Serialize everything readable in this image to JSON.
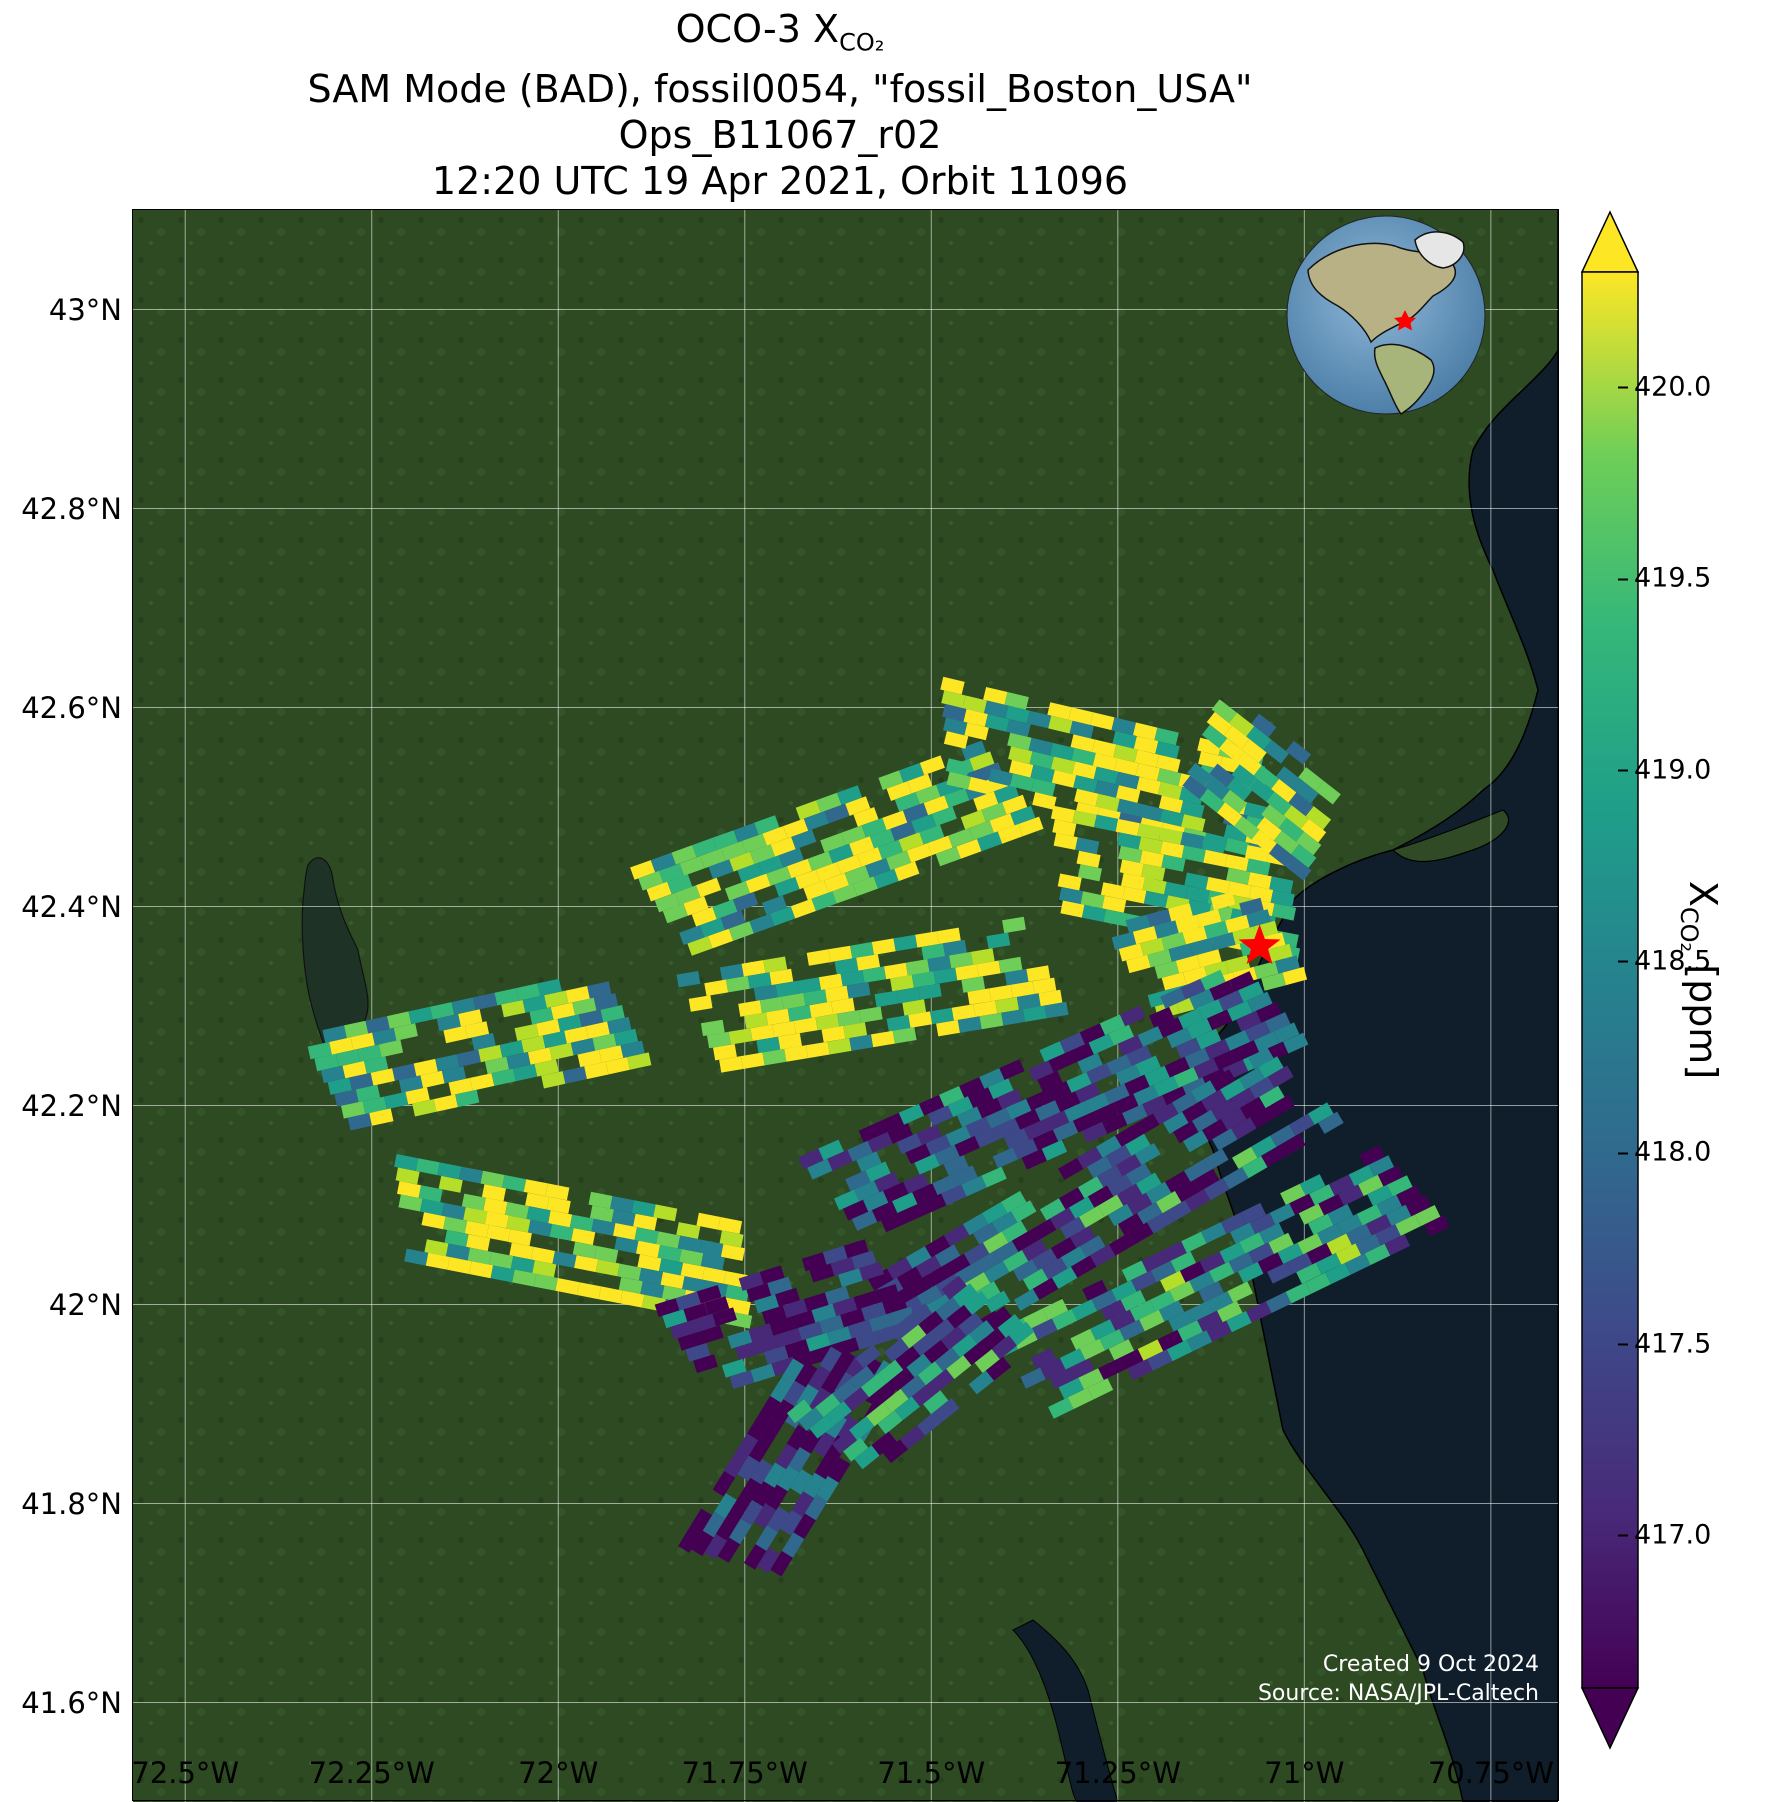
{
  "title": {
    "line1_main": "OCO-3 X",
    "line1_sub": "CO₂",
    "line2": "SAM Mode (BAD), fossil0054, \"fossil_Boston_USA\"",
    "line3": "Ops_B11067_r02",
    "line4": "12:20 UTC 19 Apr 2021, Orbit 11096"
  },
  "map": {
    "lon_range": [
      -72.57,
      -70.66
    ],
    "lat_range": [
      41.5,
      43.1
    ],
    "lat_ticks": [
      {
        "value": 43.0,
        "label": "43°N"
      },
      {
        "value": 42.8,
        "label": "42.8°N"
      },
      {
        "value": 42.6,
        "label": "42.6°N"
      },
      {
        "value": 42.4,
        "label": "42.4°N"
      },
      {
        "value": 42.2,
        "label": "42.2°N"
      },
      {
        "value": 42.0,
        "label": "42°N"
      },
      {
        "value": 41.8,
        "label": "41.8°N"
      },
      {
        "value": 41.6,
        "label": "41.6°N"
      }
    ],
    "lon_ticks": [
      {
        "value": -72.5,
        "label": "72.5°W"
      },
      {
        "value": -72.25,
        "label": "72.25°W"
      },
      {
        "value": -72.0,
        "label": "72°W"
      },
      {
        "value": -71.75,
        "label": "71.75°W"
      },
      {
        "value": -71.5,
        "label": "71.5°W"
      },
      {
        "value": -71.25,
        "label": "71.25°W"
      },
      {
        "value": -71.0,
        "label": "71°W"
      },
      {
        "value": -70.75,
        "label": "70.75°W"
      }
    ],
    "target": {
      "lon": -71.06,
      "lat": 42.36,
      "marker": "red-star"
    },
    "credit_line1": "Created 9 Oct 2024",
    "credit_line2": "Source: NASA/JPL-Caltech",
    "inset_globe": {
      "marker": "red-star",
      "region": "Western hemisphere, centered on North America"
    }
  },
  "colorbar": {
    "colormap": "viridis",
    "min": 416.6,
    "max": 420.3,
    "extend": "both",
    "ticks": [
      {
        "value": 417.0,
        "label": "417.0"
      },
      {
        "value": 417.5,
        "label": "417.5"
      },
      {
        "value": 418.0,
        "label": "418.0"
      },
      {
        "value": 418.5,
        "label": "418.5"
      },
      {
        "value": 419.0,
        "label": "419.0"
      },
      {
        "value": 419.5,
        "label": "419.5"
      },
      {
        "value": 420.0,
        "label": "420.0"
      }
    ],
    "label_main": "X",
    "label_sub": "CO₂",
    "label_unit": " [ppm]"
  },
  "colors": {
    "land": "#2e4a22",
    "ocean": "#0f1e2a",
    "grid": "#ffffff",
    "star": "#ff0000"
  },
  "chart_data": {
    "type": "heatmap",
    "description_free": true,
    "scans": [
      {
        "start": [
          -72.33,
          42.22
        ],
        "end": [
          -71.9,
          42.29
        ],
        "mean": 419.3
      },
      {
        "start": [
          -72.23,
          42.1
        ],
        "end": [
          -71.75,
          42.03
        ],
        "mean": 419.6
      },
      {
        "start": [
          -71.88,
          42.39
        ],
        "end": [
          -71.4,
          42.52
        ],
        "mean": 419.4
      },
      {
        "start": [
          -71.83,
          42.28
        ],
        "end": [
          -71.35,
          42.34
        ],
        "mean": 419.6
      },
      {
        "start": [
          -71.5,
          42.58
        ],
        "end": [
          -71.05,
          42.5
        ],
        "mean": 419.5
      },
      {
        "start": [
          -71.35,
          42.45
        ],
        "end": [
          -71.02,
          42.4
        ],
        "mean": 419.7
      },
      {
        "start": [
          -71.15,
          42.58
        ],
        "end": [
          -70.98,
          42.48
        ],
        "mean": 419.2
      },
      {
        "start": [
          -71.25,
          42.33
        ],
        "end": [
          -71.05,
          42.37
        ],
        "mean": 419.4
      },
      {
        "start": [
          -71.65,
          42.1
        ],
        "end": [
          -71.05,
          42.3
        ],
        "mean": 417.4
      },
      {
        "start": [
          -71.55,
          41.98
        ],
        "end": [
          -71.0,
          42.22
        ],
        "mean": 417.8
      },
      {
        "start": [
          -71.4,
          41.92
        ],
        "end": [
          -70.85,
          42.12
        ],
        "mean": 418.1
      },
      {
        "start": [
          -71.85,
          41.95
        ],
        "end": [
          -71.55,
          42.02
        ],
        "mean": 417.2
      },
      {
        "start": [
          -71.78,
          41.73
        ],
        "end": [
          -71.6,
          41.95
        ],
        "mean": 417.0
      },
      {
        "start": [
          -71.65,
          41.85
        ],
        "end": [
          -71.4,
          42.0
        ],
        "mean": 417.9
      }
    ]
  }
}
